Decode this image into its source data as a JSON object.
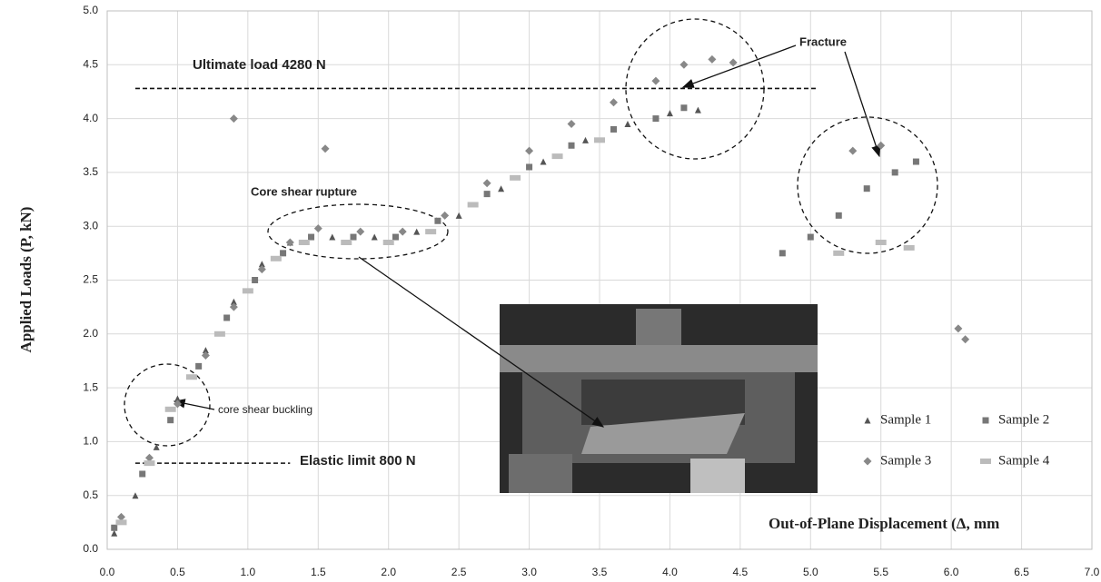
{
  "chart_data": {
    "type": "scatter",
    "x_label": "Out-of-Plane Displacement (Δ, mm",
    "y_label": "Applied  Loads (P, kN)",
    "xlim": [
      0,
      7
    ],
    "ylim": [
      0,
      5
    ],
    "xticks": [
      {
        "value": 0,
        "label": "0.0"
      },
      0.5,
      {
        "value": 1,
        "label": "1.0"
      },
      1.5,
      {
        "value": 2,
        "label": "2.0"
      },
      2.5,
      {
        "value": 3,
        "label": "3.0"
      },
      3.5,
      {
        "value": 4,
        "label": "4.0"
      },
      4.5,
      {
        "value": 5,
        "label": "5.0"
      },
      5.5,
      {
        "value": 6,
        "label": "6.0"
      },
      6.5,
      {
        "value": 7,
        "label": "7.0"
      }
    ],
    "yticks": [
      {
        "value": 0,
        "label": "0.0"
      },
      0.5,
      {
        "value": 1,
        "label": "1.0"
      },
      1.5,
      {
        "value": 2,
        "label": "2.0"
      },
      2.5,
      {
        "value": 3,
        "label": "3.0"
      },
      3.5,
      {
        "value": 4,
        "label": "4.0"
      },
      4.5,
      {
        "value": 5,
        "label": "5.0"
      }
    ],
    "grid": true,
    "legend": "lower-right",
    "annotations": {
      "ultimate": "Ultimate load 4280 N",
      "elastic": "Elastic limit 800 N",
      "rupture": "Core shear rupture",
      "buckling": "core shear buckling",
      "fracture": "Fracture"
    },
    "reference_lines": [
      {
        "value": 4.28,
        "xlim": [
          0.2,
          5.05
        ]
      },
      {
        "value": 0.8,
        "xlim": [
          0.2,
          1.3
        ]
      }
    ],
    "series": [
      {
        "name": "Sample 1",
        "color": "#555555",
        "marker": "triangle",
        "x": [
          0.05,
          0.2,
          0.35,
          0.5,
          0.7,
          0.9,
          1.1,
          1.3,
          1.6,
          1.9,
          2.2,
          2.5,
          2.8,
          3.1,
          3.4,
          3.7,
          4.0,
          4.2
        ],
        "values": [
          0.15,
          0.5,
          0.95,
          1.4,
          1.85,
          2.3,
          2.65,
          2.85,
          2.9,
          2.9,
          2.95,
          3.1,
          3.35,
          3.6,
          3.8,
          3.95,
          4.05,
          4.08
        ]
      },
      {
        "name": "Sample 2",
        "color": "#777777",
        "marker": "square",
        "x": [
          0.05,
          0.25,
          0.45,
          0.65,
          0.85,
          1.05,
          1.25,
          1.45,
          1.75,
          2.05,
          2.35,
          2.7,
          3.0,
          3.3,
          3.6,
          3.9,
          4.1,
          4.8,
          5.0,
          5.2,
          5.4,
          5.6,
          5.75
        ],
        "values": [
          0.2,
          0.7,
          1.2,
          1.7,
          2.15,
          2.5,
          2.75,
          2.9,
          2.9,
          2.9,
          3.05,
          3.3,
          3.55,
          3.75,
          3.9,
          4.0,
          4.1,
          2.75,
          2.9,
          3.1,
          3.35,
          3.5,
          3.6
        ]
      },
      {
        "name": "Sample 3",
        "color": "#888888",
        "marker": "diamond",
        "x": [
          0.1,
          0.3,
          0.5,
          0.7,
          0.9,
          1.1,
          1.3,
          1.5,
          1.8,
          2.1,
          2.4,
          2.7,
          3.0,
          3.3,
          3.6,
          3.9,
          4.1,
          4.3,
          4.45,
          0.9,
          1.55,
          5.3,
          5.5,
          6.05,
          6.1
        ],
        "values": [
          0.3,
          0.85,
          1.35,
          1.8,
          2.25,
          2.6,
          2.85,
          2.98,
          2.95,
          2.95,
          3.1,
          3.4,
          3.7,
          3.95,
          4.15,
          4.35,
          4.5,
          4.55,
          4.52,
          4.0,
          3.72,
          3.7,
          3.75,
          2.05,
          1.95
        ]
      },
      {
        "name": "Sample 4",
        "color": "#bbbbbb",
        "marker": "rect",
        "x": [
          0.1,
          0.3,
          0.45,
          0.6,
          0.8,
          1.0,
          1.2,
          1.4,
          1.7,
          2.0,
          2.3,
          2.6,
          2.9,
          3.2,
          3.5,
          5.2,
          5.5,
          5.7
        ],
        "values": [
          0.25,
          0.8,
          1.3,
          1.6,
          2.0,
          2.4,
          2.7,
          2.85,
          2.85,
          2.85,
          2.95,
          3.2,
          3.45,
          3.65,
          3.8,
          2.75,
          2.85,
          2.8
        ]
      }
    ]
  }
}
